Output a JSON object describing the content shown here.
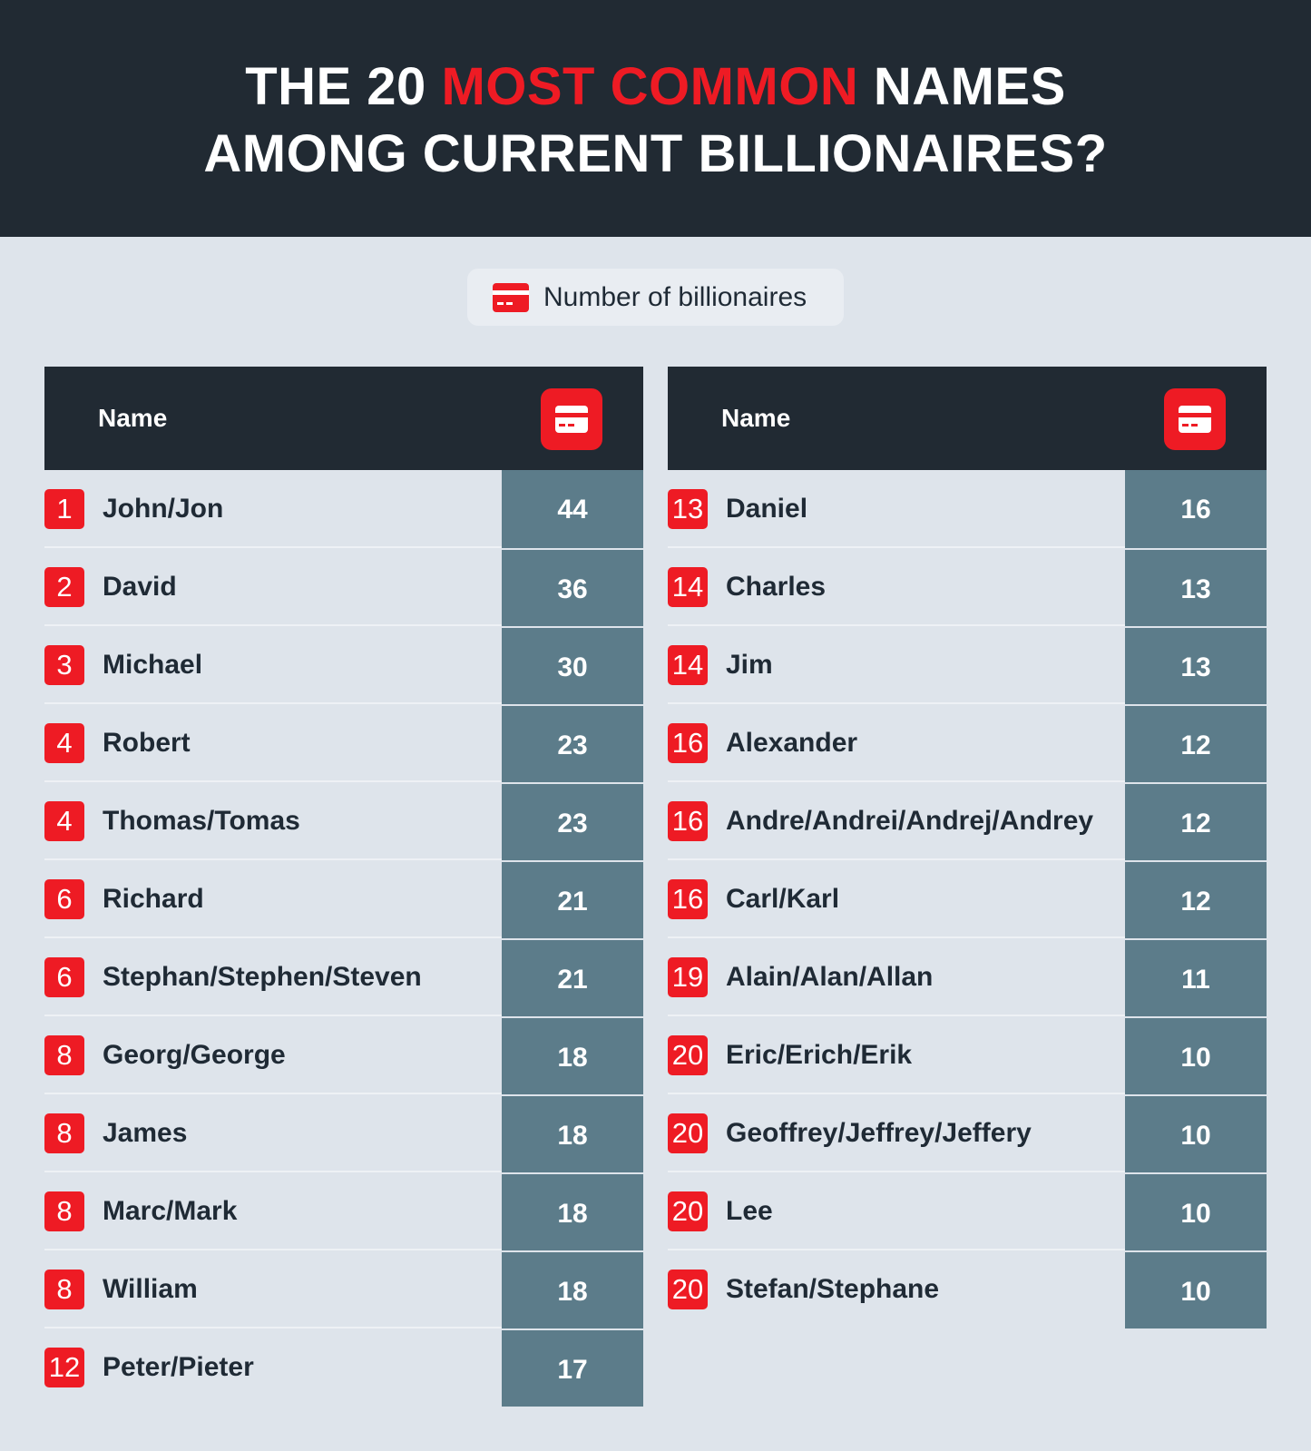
{
  "header": {
    "title_line1_pre": "THE 20 ",
    "title_line1_accent": "MOST COMMON",
    "title_line1_post": " NAMES",
    "title_line2": "AMONG CURRENT BILLIONAIRES?"
  },
  "legend": {
    "label": "Number of billionaires",
    "icon": "credit-card-icon"
  },
  "colors": {
    "header_bg": "#212a33",
    "accent_red": "#ee1b24",
    "value_col_bg": "#5c7c8a",
    "page_bg": "#dee4eb"
  },
  "tables": [
    {
      "column_name_header": "Name",
      "rows": [
        {
          "rank": "1",
          "name": "John/Jon",
          "value": "44"
        },
        {
          "rank": "2",
          "name": "David",
          "value": "36"
        },
        {
          "rank": "3",
          "name": "Michael",
          "value": "30"
        },
        {
          "rank": "4",
          "name": "Robert",
          "value": "23"
        },
        {
          "rank": "4",
          "name": "Thomas/Tomas",
          "value": "23"
        },
        {
          "rank": "6",
          "name": "Richard",
          "value": "21"
        },
        {
          "rank": "6",
          "name": "Stephan/Stephen/Steven",
          "value": "21"
        },
        {
          "rank": "8",
          "name": "Georg/George",
          "value": "18"
        },
        {
          "rank": "8",
          "name": "James",
          "value": "18"
        },
        {
          "rank": "8",
          "name": "Marc/Mark",
          "value": "18"
        },
        {
          "rank": "8",
          "name": "William",
          "value": "18"
        },
        {
          "rank": "12",
          "name": "Peter/Pieter",
          "value": "17"
        }
      ]
    },
    {
      "column_name_header": "Name",
      "rows": [
        {
          "rank": "13",
          "name": "Daniel",
          "value": "16"
        },
        {
          "rank": "14",
          "name": "Charles",
          "value": "13"
        },
        {
          "rank": "14",
          "name": "Jim",
          "value": "13"
        },
        {
          "rank": "16",
          "name": "Alexander",
          "value": "12"
        },
        {
          "rank": "16",
          "name": "Andre/Andrei/Andrej/Andrey",
          "value": "12"
        },
        {
          "rank": "16",
          "name": "Carl/Karl",
          "value": "12"
        },
        {
          "rank": "19",
          "name": "Alain/Alan/Allan",
          "value": "11"
        },
        {
          "rank": "20",
          "name": "Eric/Erich/Erik",
          "value": "10"
        },
        {
          "rank": "20",
          "name": "Geoffrey/Jeffrey/Jeffery",
          "value": "10"
        },
        {
          "rank": "20",
          "name": "Lee",
          "value": "10"
        },
        {
          "rank": "20",
          "name": "Stefan/Stephane",
          "value": "10"
        }
      ]
    }
  ]
}
